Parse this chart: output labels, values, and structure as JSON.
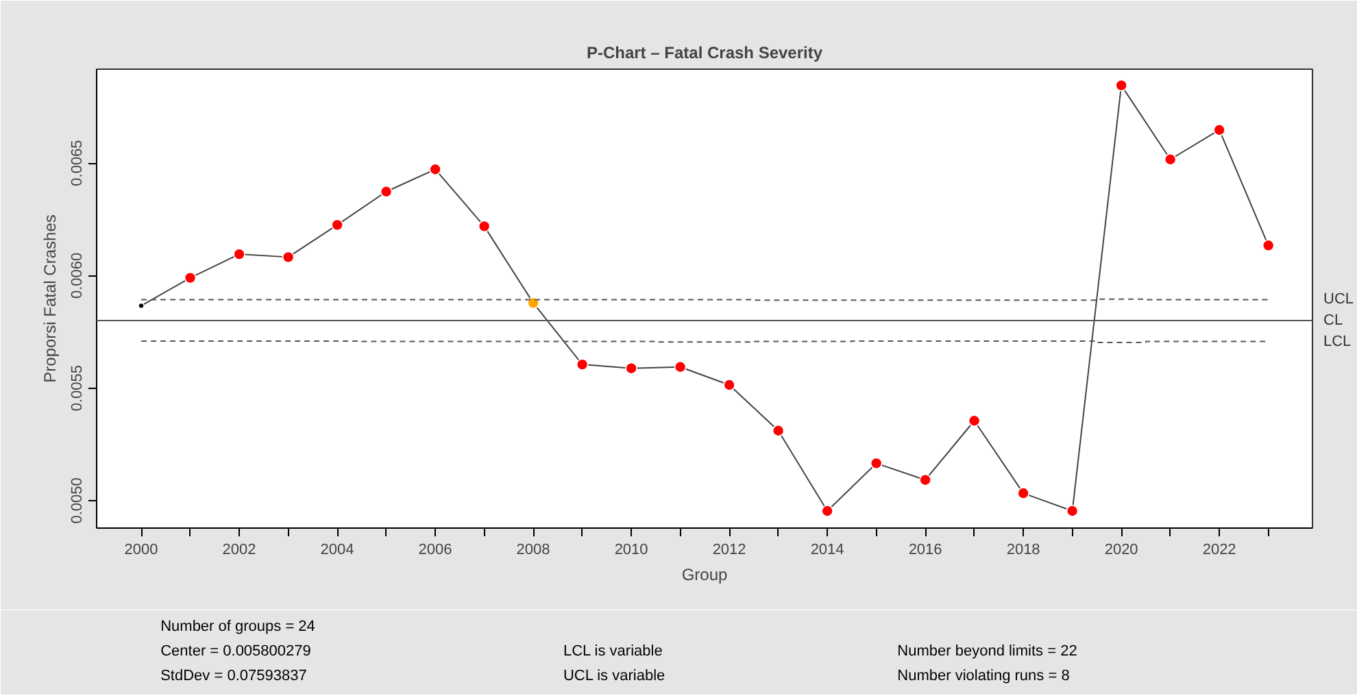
{
  "chart_data": {
    "type": "line",
    "title": "P-Chart – Fatal Crash Severity",
    "xlabel": "Group",
    "ylabel": "Proporsi Fatal Crashes",
    "x": [
      2000,
      2001,
      2002,
      2003,
      2004,
      2005,
      2006,
      2007,
      2008,
      2009,
      2010,
      2011,
      2012,
      2013,
      2014,
      2015,
      2016,
      2017,
      2018,
      2019,
      2020,
      2021,
      2022,
      2023
    ],
    "series": [
      {
        "color": "#444444",
        "marker": "circle",
        "colors": [
          "#000000",
          "#ff0000",
          "#ff0000",
          "#ff0000",
          "#ff0000",
          "#ff0000",
          "#ff0000",
          "#ff0000",
          "#ffa500",
          "#ff0000",
          "#ff0000",
          "#ff0000",
          "#ff0000",
          "#ff0000",
          "#ff0000",
          "#ff0000",
          "#ff0000",
          "#ff0000",
          "#ff0000",
          "#ff0000",
          "#ff0000",
          "#ff0000",
          "#ff0000",
          "#ff0000"
        ],
        "values": [
          0.005866,
          0.00599,
          0.006095,
          0.006082,
          0.006225,
          0.006373,
          0.006472,
          0.006219,
          0.005878,
          0.005605,
          0.005588,
          0.005594,
          0.005514,
          0.005311,
          0.004954,
          0.005166,
          0.005092,
          0.005355,
          0.005033,
          0.004954,
          0.006845,
          0.006516,
          0.006647,
          0.006134
        ]
      },
      {
        "type": "step",
        "name": "UCL",
        "color": "#555555",
        "line_style": "dashed",
        "values": [
          0.005893,
          0.005893,
          0.005893,
          0.005893,
          0.005893,
          0.005893,
          0.005893,
          0.005893,
          0.005893,
          0.005893,
          0.005893,
          0.005893,
          0.005893,
          0.005891,
          0.005891,
          0.005891,
          0.005891,
          0.005891,
          0.005891,
          0.005891,
          0.005895,
          0.005893,
          0.005893,
          0.005893
        ]
      },
      {
        "type": "step",
        "name": "LCL",
        "color": "#555555",
        "line_style": "dashed",
        "values": [
          0.005709,
          0.005709,
          0.005709,
          0.005709,
          0.005709,
          0.005707,
          0.005707,
          0.005707,
          0.005707,
          0.005707,
          0.005707,
          0.005705,
          0.005705,
          0.005707,
          0.005707,
          0.005709,
          0.005709,
          0.005709,
          0.005709,
          0.005709,
          0.005703,
          0.005707,
          0.005707,
          0.005707
        ]
      }
    ],
    "ref_lines": [
      {
        "axis": "y",
        "value": 0.0058,
        "label": "CL",
        "color": "#555555",
        "line_style": "solid"
      }
    ],
    "xlim": [
      1999.09,
      2023.9
    ],
    "xticks": [
      2000,
      {
        "value": 2001,
        "label": null
      },
      2002,
      {
        "value": 2003,
        "label": null
      },
      2004,
      {
        "value": 2005,
        "label": null
      },
      2006,
      {
        "value": 2007,
        "label": null
      },
      2008,
      {
        "value": 2009,
        "label": null
      },
      2010,
      {
        "value": 2011,
        "label": null
      },
      2012,
      {
        "value": 2013,
        "label": null
      },
      2014,
      {
        "value": 2015,
        "label": null
      },
      2016,
      {
        "value": 2017,
        "label": null
      },
      2018,
      {
        "value": 2019,
        "label": null
      },
      2020,
      {
        "value": 2021,
        "label": null
      },
      2022,
      {
        "value": 2023,
        "label": null
      }
    ],
    "ylim": [
      0.004878,
      0.006917
    ],
    "yticks": [
      {
        "value": 0.005,
        "label": "0.0050"
      },
      {
        "value": 0.0055,
        "label": "0.0055"
      },
      {
        "value": 0.006,
        "label": "0.0060"
      },
      {
        "value": 0.0065,
        "label": "0.0065"
      }
    ],
    "grid": false,
    "annotations": [
      "Number of groups = 24",
      "Center = 0.005800279",
      "StdDev = 0.07593837",
      "LCL is variable",
      "UCL is variable",
      "Number beyond limits = 22",
      "Number violating runs = 8"
    ]
  }
}
